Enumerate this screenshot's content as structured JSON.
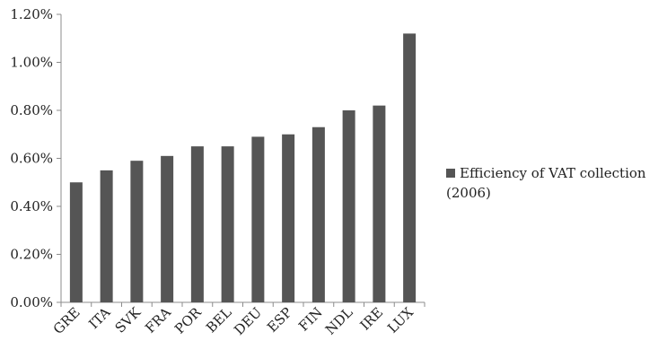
{
  "chart_data": {
    "type": "bar",
    "title": "",
    "xlabel": "",
    "ylabel": "",
    "categories": [
      "GRE",
      "ITA",
      "SVK",
      "FRA",
      "POR",
      "BEL",
      "DEU",
      "ESP",
      "FIN",
      "NDL",
      "IRE",
      "LUX"
    ],
    "series": [
      {
        "name": "Efficiency of VAT collection (2006)",
        "values": [
          0.5,
          0.55,
          0.59,
          0.61,
          0.65,
          0.65,
          0.69,
          0.7,
          0.73,
          0.8,
          0.82,
          1.12
        ],
        "color": "#555555"
      }
    ],
    "ylim": [
      0,
      1.2
    ],
    "yticks": [
      "0.00%",
      "0.20%",
      "0.40%",
      "0.60%",
      "0.80%",
      "1.00%",
      "1.20%"
    ],
    "grid": false,
    "legend_position": "right"
  }
}
